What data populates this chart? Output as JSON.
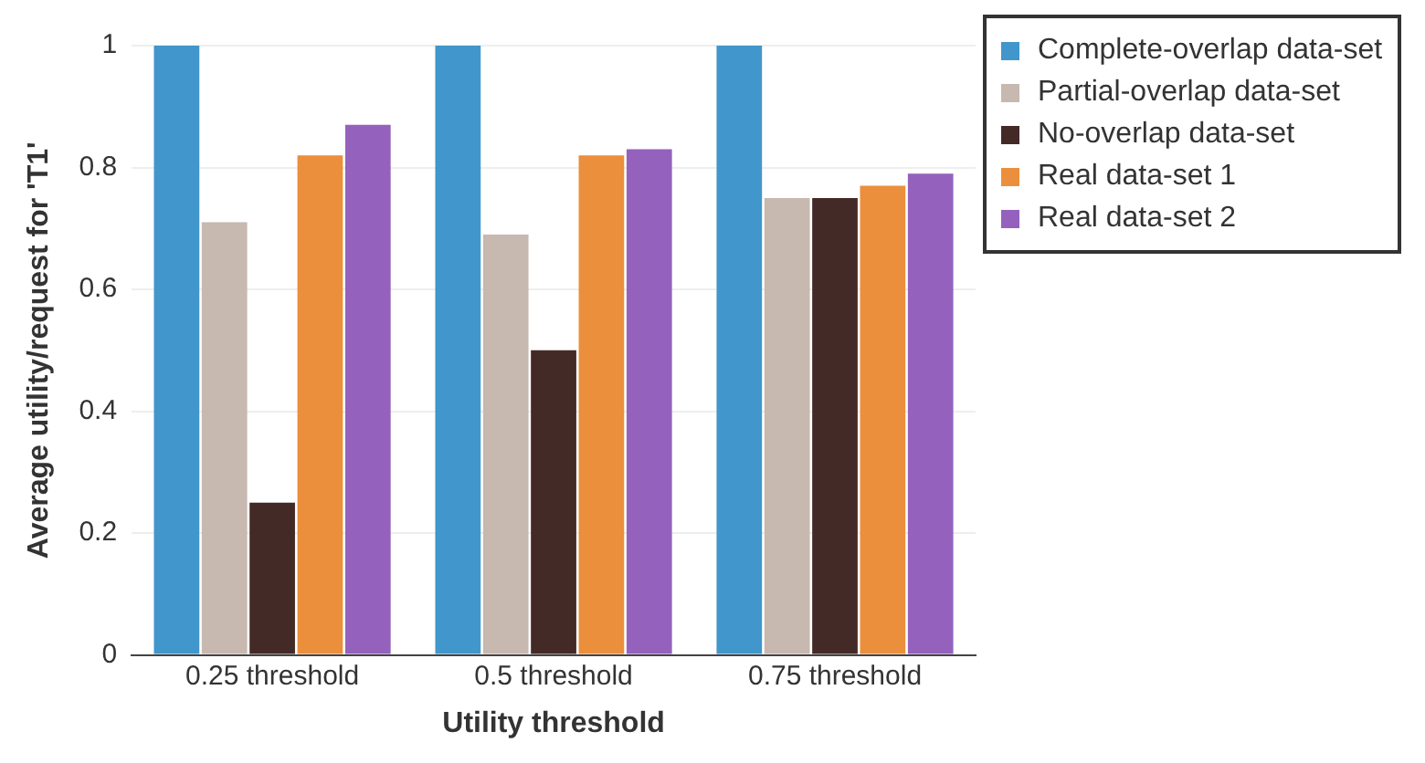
{
  "chart_data": {
    "type": "bar",
    "xlabel": "Utility threshold",
    "ylabel": "Average utility/request for 'T1'",
    "categories": [
      "0.25 threshold",
      "0.5 threshold",
      "0.75 threshold"
    ],
    "series": [
      {
        "name": "Complete-overlap data-set",
        "color": "#4196cc",
        "values": [
          1,
          1,
          1
        ]
      },
      {
        "name": "Partial-overlap data-set",
        "color": "#c7b8b0",
        "values": [
          0.71,
          0.69,
          0.75
        ]
      },
      {
        "name": "No-overlap data-set",
        "color": "#442a27",
        "values": [
          0.25,
          0.5,
          0.75
        ]
      },
      {
        "name": "Real data-set 1",
        "color": "#eb8f3c",
        "values": [
          0.82,
          0.82,
          0.77
        ]
      },
      {
        "name": "Real data-set 2",
        "color": "#9462bd",
        "values": [
          0.87,
          0.83,
          0.79
        ]
      }
    ],
    "ylim": [
      0,
      1
    ],
    "yticks": [
      0,
      0.2,
      0.4,
      0.6,
      0.8,
      1
    ],
    "grid": "y",
    "legend": "top right"
  }
}
